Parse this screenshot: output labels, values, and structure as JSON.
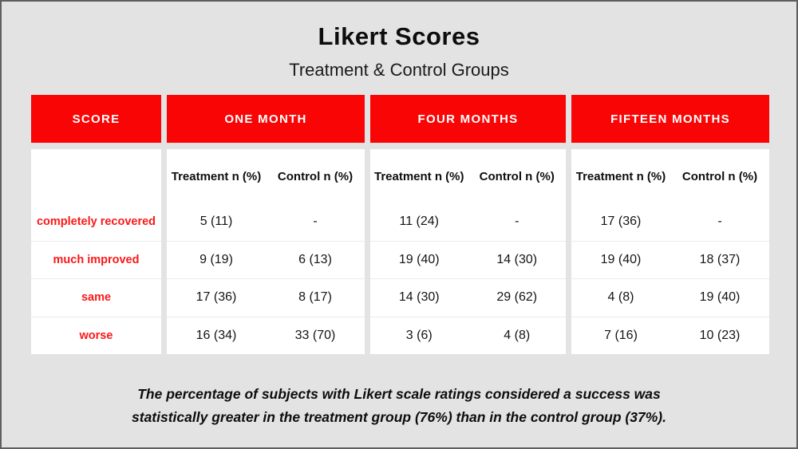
{
  "chart_data": {
    "type": "table",
    "title": "Likert Scores",
    "subtitle": "Treatment & Control Groups",
    "score_column_header": "SCORE",
    "period_headers": [
      "ONE MONTH",
      "FOUR MONTHS",
      "FIFTEEN MONTHS"
    ],
    "subheaders": {
      "treatment": "Treatment n (%)",
      "control": "Control n (%)"
    },
    "value_columns_order": [
      "one_month_treatment",
      "one_month_control",
      "four_months_treatment",
      "four_months_control",
      "fifteen_months_treatment",
      "fifteen_months_control"
    ],
    "rows": [
      {
        "label": "completely recovered",
        "values": [
          "5 (11)",
          "-",
          "11 (24)",
          "-",
          "17 (36)",
          "-"
        ]
      },
      {
        "label": "much improved",
        "values": [
          "9 (19)",
          "6 (13)",
          "19 (40)",
          "14 (30)",
          "19 (40)",
          "18 (37)"
        ]
      },
      {
        "label": "same",
        "values": [
          "17 (36)",
          "8 (17)",
          "14 (30)",
          "29 (62)",
          "4 (8)",
          "19 (40)"
        ]
      },
      {
        "label": "worse",
        "values": [
          "16 (34)",
          "33 (70)",
          "3 (6)",
          "4 (8)",
          "7 (16)",
          "10 (23)"
        ]
      }
    ],
    "caption_line1": "The percentage of subjects with Likert scale ratings considered a success was",
    "caption_line2": "statistically greater in the treatment group (76%) than in the control group (37%).",
    "treatment_success_pct": 76,
    "control_success_pct": 37
  },
  "colors": {
    "bar_red": "#fa0505",
    "row_label_red": "#fb1818",
    "page_background": "#e4e3e3",
    "block_white": "#ffffff",
    "divider_gray": "#eaeaea",
    "border_gray": "#5f5f5f",
    "text_black": "#0d0d0d",
    "bar_text_white": "#ffffff"
  }
}
